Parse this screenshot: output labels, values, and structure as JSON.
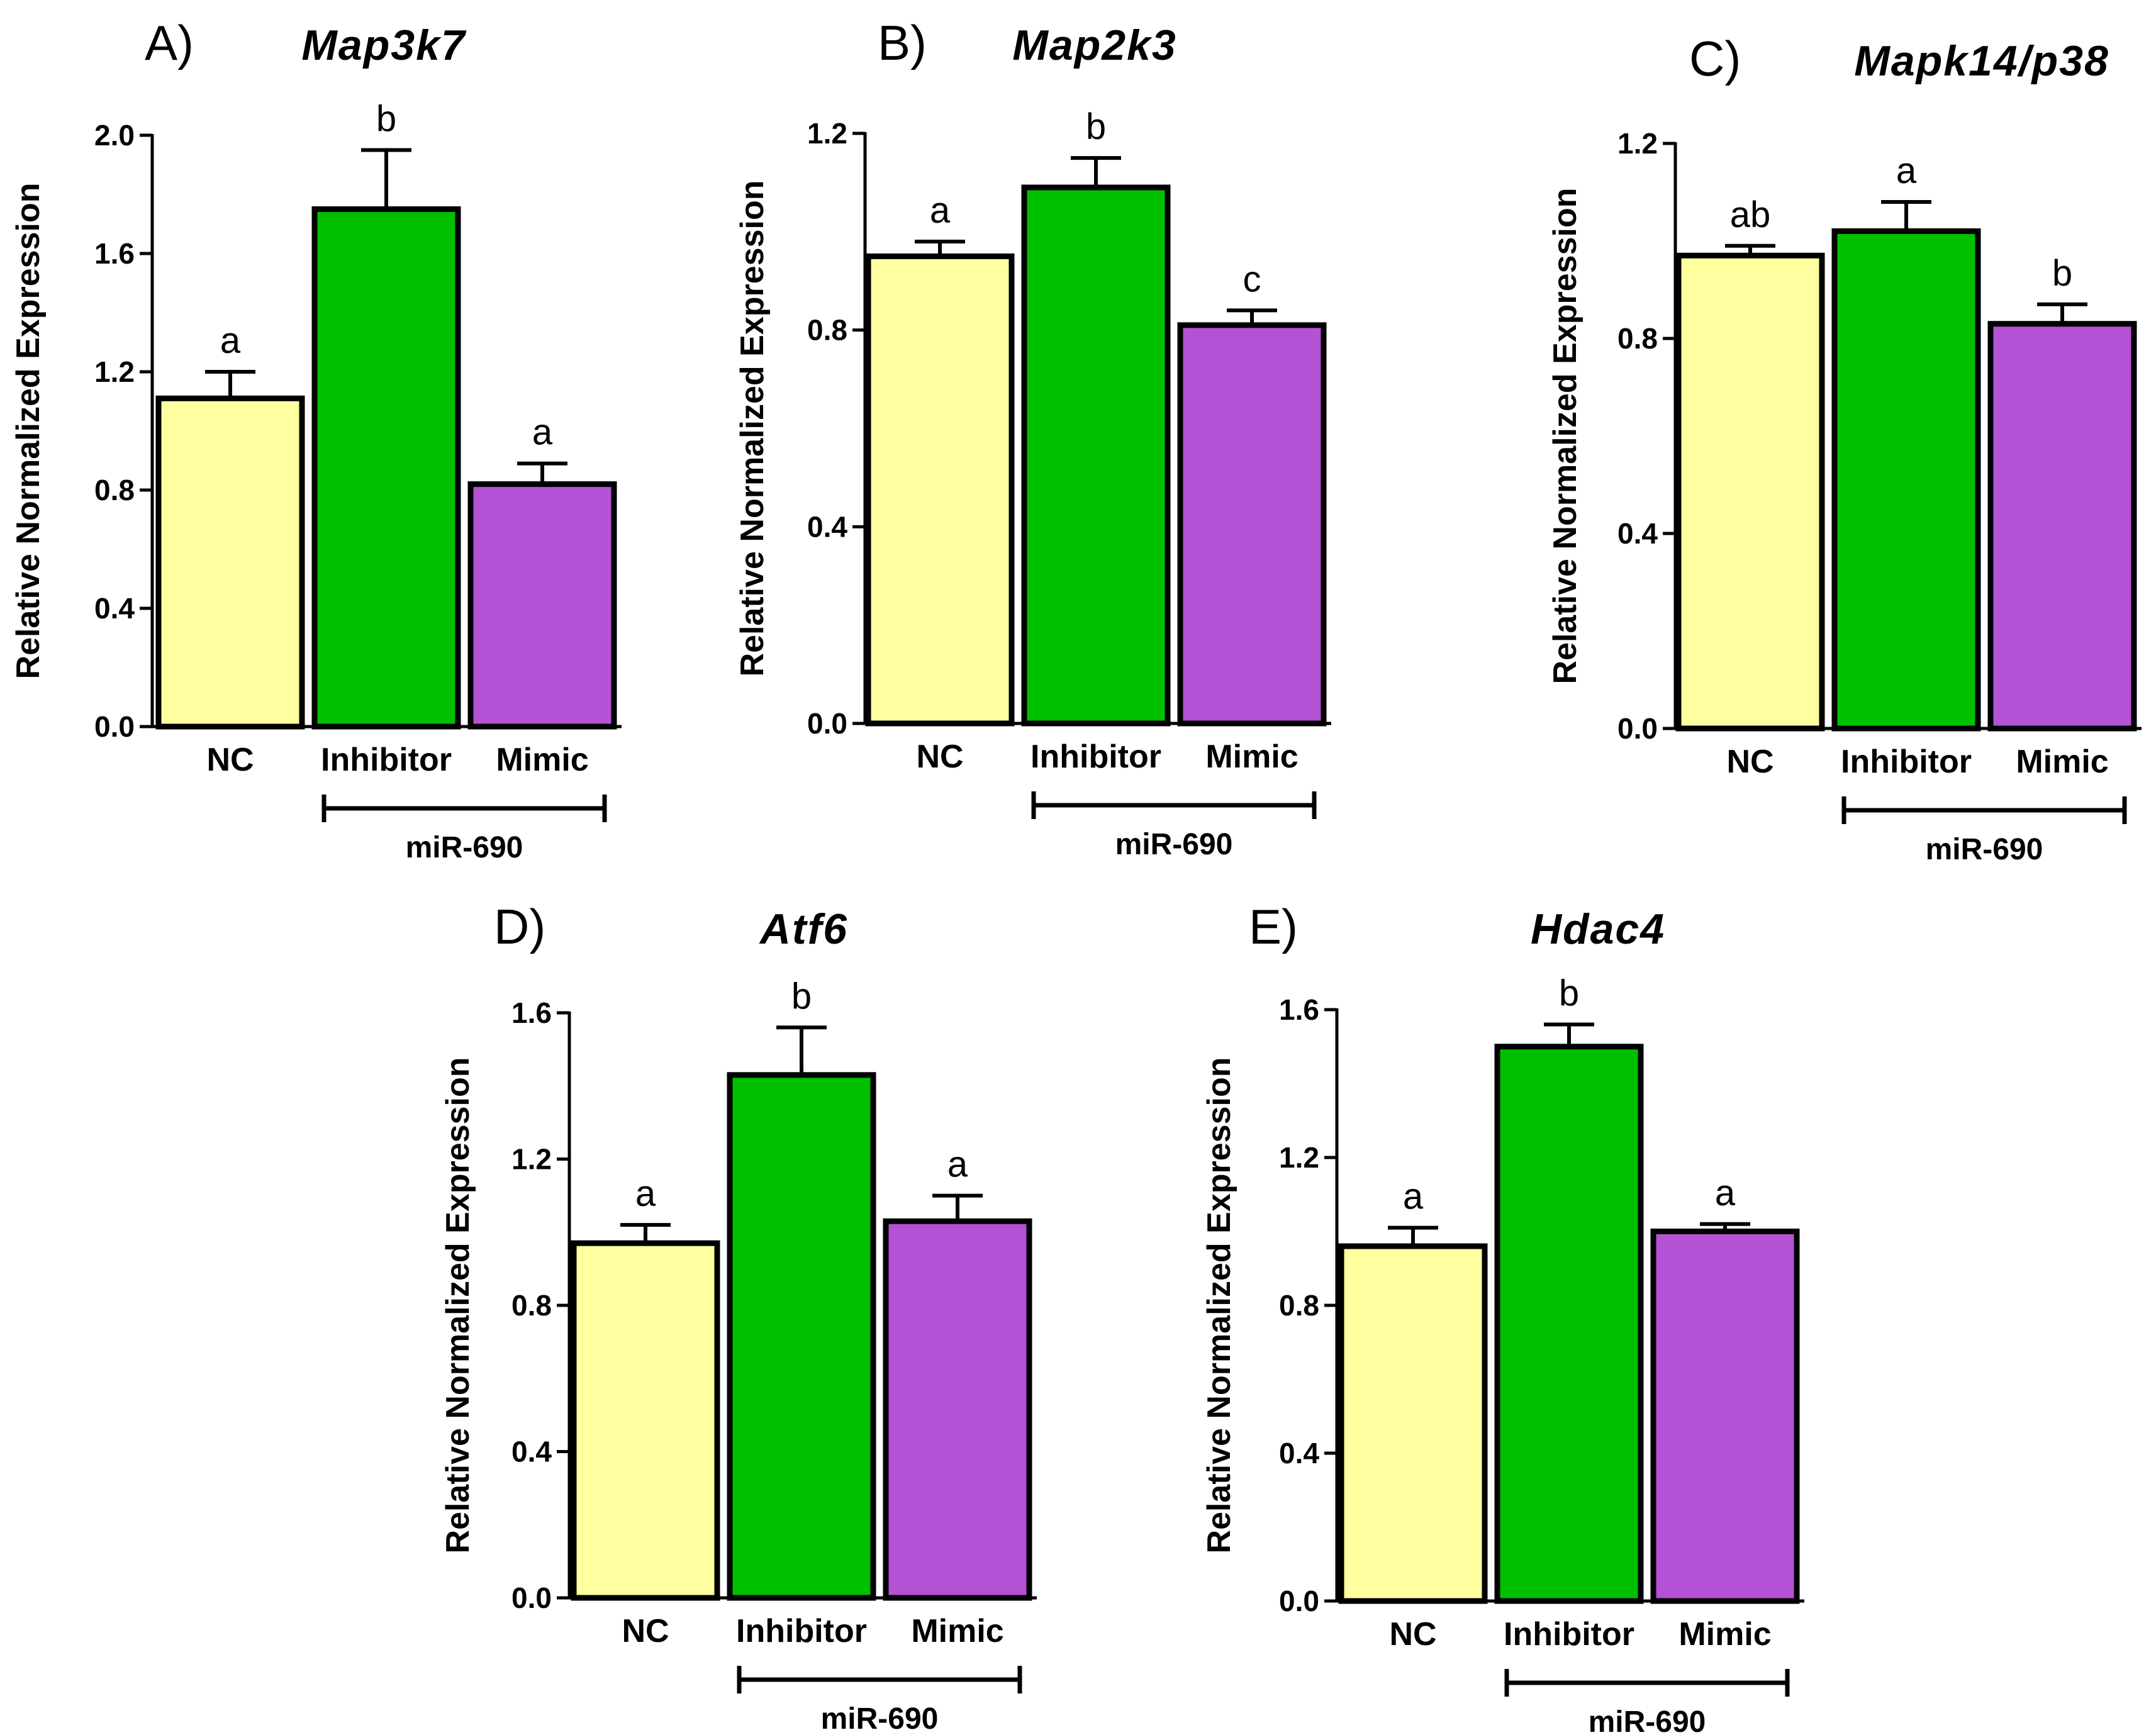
{
  "colors": {
    "NC": "#ffff9f",
    "Inhibitor": "#00c000",
    "Mimic": "#b452d6",
    "outline": "#000000"
  },
  "chart_data": [
    {
      "type": "bar",
      "panel": "A)",
      "title": "Map3k7",
      "ylabel": "Relative Normalized Expression",
      "xlabel": "",
      "ylim": [
        0,
        2.0
      ],
      "yticks": [
        "0.0",
        "0.4",
        "0.8",
        "1.2",
        "1.6",
        "2.0"
      ],
      "categories": [
        "NC",
        "Inhibitor",
        "Mimic"
      ],
      "values": [
        1.11,
        1.75,
        0.82
      ],
      "errors": [
        0.09,
        0.2,
        0.07
      ],
      "letters": [
        "a",
        "b",
        "a"
      ],
      "group_label": "miR-690"
    },
    {
      "type": "bar",
      "panel": "B)",
      "title": "Map2k3",
      "ylabel": "Relative Normalized Expression",
      "xlabel": "",
      "ylim": [
        0,
        1.2
      ],
      "yticks": [
        "0.0",
        "0.4",
        "0.8",
        "1.2"
      ],
      "categories": [
        "NC",
        "Inhibitor",
        "Mimic"
      ],
      "values": [
        0.95,
        1.09,
        0.81
      ],
      "errors": [
        0.03,
        0.06,
        0.03
      ],
      "letters": [
        "a",
        "b",
        "c"
      ],
      "group_label": "miR-690"
    },
    {
      "type": "bar",
      "panel": "C)",
      "title": "Mapk14/p38",
      "ylabel": "Relative Normalized Expression",
      "xlabel": "",
      "ylim": [
        0,
        1.2
      ],
      "yticks": [
        "0.0",
        "0.4",
        "0.8",
        "1.2"
      ],
      "categories": [
        "NC",
        "Inhibitor",
        "Mimic"
      ],
      "values": [
        0.97,
        1.02,
        0.83
      ],
      "errors": [
        0.02,
        0.06,
        0.04
      ],
      "letters": [
        "ab",
        "a",
        "b"
      ],
      "group_label": "miR-690"
    },
    {
      "type": "bar",
      "panel": "D)",
      "title": "Atf6",
      "ylabel": "Relative Normalized Expression",
      "xlabel": "",
      "ylim": [
        0,
        1.6
      ],
      "yticks": [
        "0.0",
        "0.4",
        "0.8",
        "1.2",
        "1.6"
      ],
      "categories": [
        "NC",
        "Inhibitor",
        "Mimic"
      ],
      "values": [
        0.97,
        1.43,
        1.03
      ],
      "errors": [
        0.05,
        0.13,
        0.07
      ],
      "letters": [
        "a",
        "b",
        "a"
      ],
      "group_label": "miR-690"
    },
    {
      "type": "bar",
      "panel": "E)",
      "title": "Hdac4",
      "ylabel": "Relative Normalized Expression",
      "xlabel": "",
      "ylim": [
        0,
        1.6
      ],
      "yticks": [
        "0.0",
        "0.4",
        "0.8",
        "1.2",
        "1.6"
      ],
      "categories": [
        "NC",
        "Inhibitor",
        "Mimic"
      ],
      "values": [
        0.96,
        1.5,
        1.0
      ],
      "errors": [
        0.05,
        0.06,
        0.02
      ],
      "letters": [
        "a",
        "b",
        "a"
      ],
      "group_label": "miR-690"
    }
  ]
}
